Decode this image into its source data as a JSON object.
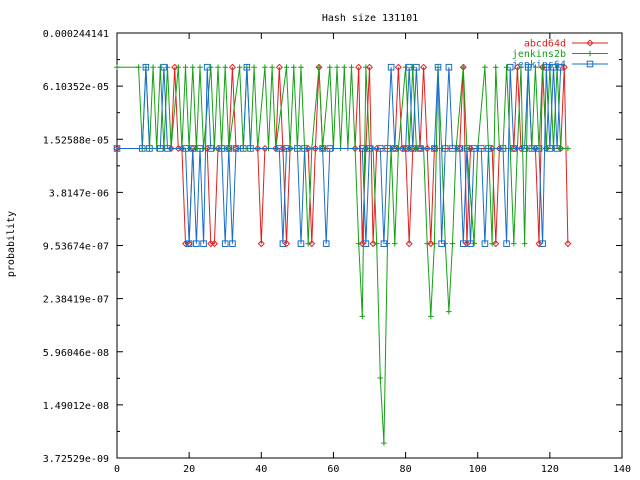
{
  "chart_data": {
    "type": "line",
    "title": "Hash size 131101",
    "xlabel": "",
    "ylabel": "probability",
    "xlim": [
      0,
      140
    ],
    "ylim": [
      3.72529e-09,
      0.000244141
    ],
    "yscale": "log4",
    "grid": false,
    "legend": "top-right",
    "x_ticks": [
      "0",
      "20",
      "40",
      "60",
      "80",
      "100",
      "120",
      "140"
    ],
    "y_ticks": [
      "0.000244141",
      "6.10352e-05",
      "1.52588e-05",
      "3.8147e-06",
      "9.53674e-07",
      "2.38419e-07",
      "5.96046e-08",
      "1.49012e-08",
      "3.72529e-09"
    ],
    "series": [
      {
        "name": "abcd64d",
        "color": "#e0201e",
        "marker": "diamond",
        "points": [
          [
            0,
            1.2e-05
          ],
          [
            15,
            1.2e-05
          ],
          [
            16,
            0.0001
          ],
          [
            17,
            1.2e-05
          ],
          [
            18,
            1.2e-05
          ],
          [
            19,
            1e-06
          ],
          [
            20,
            1e-06
          ],
          [
            21,
            1.2e-05
          ],
          [
            25,
            1.2e-05
          ],
          [
            26,
            1e-06
          ],
          [
            27,
            1e-06
          ],
          [
            28,
            1.2e-05
          ],
          [
            31,
            1.2e-05
          ],
          [
            32,
            0.0001
          ],
          [
            33,
            1.2e-05
          ],
          [
            39,
            1.2e-05
          ],
          [
            40,
            1e-06
          ],
          [
            41,
            1.2e-05
          ],
          [
            44,
            1.2e-05
          ],
          [
            45,
            0.0001
          ],
          [
            46,
            1.2e-05
          ],
          [
            47,
            1e-06
          ],
          [
            48,
            1.2e-05
          ],
          [
            53,
            1.2e-05
          ],
          [
            54,
            1e-06
          ],
          [
            55,
            1.2e-05
          ],
          [
            56,
            0.0001
          ],
          [
            57,
            1.2e-05
          ],
          [
            66,
            1.2e-05
          ],
          [
            67,
            0.0001
          ],
          [
            68,
            1e-06
          ],
          [
            69,
            1.2e-05
          ],
          [
            70,
            0.0001
          ],
          [
            71,
            1e-06
          ],
          [
            72,
            1.2e-05
          ],
          [
            77,
            1.2e-05
          ],
          [
            78,
            0.0001
          ],
          [
            79,
            1.2e-05
          ],
          [
            80,
            1.2e-05
          ],
          [
            81,
            1e-06
          ],
          [
            82,
            1.2e-05
          ],
          [
            84,
            1.2e-05
          ],
          [
            85,
            0.0001
          ],
          [
            86,
            1.2e-05
          ],
          [
            87,
            1e-06
          ],
          [
            88,
            1.2e-05
          ],
          [
            95,
            1.2e-05
          ],
          [
            96,
            0.0001
          ],
          [
            97,
            1e-06
          ],
          [
            98,
            1.2e-05
          ],
          [
            104,
            1.2e-05
          ],
          [
            105,
            1e-06
          ],
          [
            106,
            1.2e-05
          ],
          [
            110,
            1.2e-05
          ],
          [
            111,
            0.0001
          ],
          [
            112,
            1.2e-05
          ],
          [
            116,
            1.2e-05
          ],
          [
            117,
            1e-06
          ],
          [
            118,
            0.0001
          ],
          [
            119,
            1.2e-05
          ],
          [
            123,
            1.2e-05
          ],
          [
            124,
            0.0001
          ],
          [
            125,
            1e-06
          ]
        ]
      },
      {
        "name": "jenkins2b",
        "color": "#16a016",
        "marker": "plus",
        "points": [
          [
            0,
            0.0001
          ],
          [
            6,
            0.0001
          ],
          [
            7,
            1.2e-05
          ],
          [
            8,
            0.0001
          ],
          [
            9,
            1.2e-05
          ],
          [
            10,
            0.0001
          ],
          [
            11,
            1.2e-05
          ],
          [
            12,
            0.0001
          ],
          [
            13,
            1.2e-05
          ],
          [
            14,
            0.0001
          ],
          [
            15,
            1.2e-05
          ],
          [
            17,
            0.0001
          ],
          [
            18,
            1.2e-05
          ],
          [
            19,
            0.0001
          ],
          [
            20,
            1.2e-05
          ],
          [
            21,
            0.0001
          ],
          [
            22,
            1.2e-05
          ],
          [
            23,
            0.0001
          ],
          [
            24,
            1.2e-05
          ],
          [
            26,
            0.0001
          ],
          [
            27,
            1.2e-05
          ],
          [
            28,
            0.0001
          ],
          [
            29,
            1.2e-05
          ],
          [
            30,
            0.0001
          ],
          [
            31,
            1.2e-05
          ],
          [
            34,
            0.0001
          ],
          [
            35,
            1.2e-05
          ],
          [
            36,
            0.0001
          ],
          [
            37,
            1.2e-05
          ],
          [
            38,
            0.0001
          ],
          [
            39,
            1.2e-05
          ],
          [
            41,
            0.0001
          ],
          [
            42,
            1.2e-05
          ],
          [
            43,
            0.0001
          ],
          [
            44,
            1.2e-05
          ],
          [
            47,
            0.0001
          ],
          [
            48,
            1.2e-05
          ],
          [
            49,
            0.0001
          ],
          [
            50,
            1.2e-05
          ],
          [
            51,
            0.0001
          ],
          [
            52,
            1.2e-05
          ],
          [
            53,
            1e-06
          ],
          [
            54,
            1.2e-05
          ],
          [
            56,
            0.0001
          ],
          [
            57,
            1.2e-05
          ],
          [
            59,
            0.0001
          ],
          [
            60,
            1.2e-05
          ],
          [
            61,
            0.0001
          ],
          [
            62,
            1.2e-05
          ],
          [
            63,
            0.0001
          ],
          [
            64,
            1.2e-05
          ],
          [
            65,
            0.0001
          ],
          [
            66,
            1.2e-05
          ],
          [
            67,
            1e-06
          ],
          [
            68,
            1.5e-07
          ],
          [
            69,
            0.0001
          ],
          [
            70,
            1.2e-05
          ],
          [
            71,
            1.2e-05
          ],
          [
            72,
            1e-06
          ],
          [
            73,
            3e-08
          ],
          [
            74,
            5.5e-09
          ],
          [
            75,
            1e-06
          ],
          [
            76,
            1.2e-05
          ],
          [
            77,
            1e-06
          ],
          [
            78,
            1.2e-05
          ],
          [
            80,
            0.0001
          ],
          [
            81,
            1.2e-05
          ],
          [
            82,
            0.0001
          ],
          [
            83,
            1.2e-05
          ],
          [
            85,
            1.2e-05
          ],
          [
            86,
            1e-06
          ],
          [
            87,
            1.5e-07
          ],
          [
            88,
            1e-06
          ],
          [
            89,
            0.0001
          ],
          [
            90,
            1.2e-05
          ],
          [
            91,
            1e-06
          ],
          [
            92,
            1.7e-07
          ],
          [
            93,
            1e-06
          ],
          [
            94,
            1.2e-05
          ],
          [
            96,
            0.0001
          ],
          [
            97,
            1.2e-05
          ],
          [
            99,
            1e-06
          ],
          [
            100,
            1.2e-05
          ],
          [
            102,
            0.0001
          ],
          [
            103,
            1.2e-05
          ],
          [
            104,
            1e-06
          ],
          [
            105,
            0.0001
          ],
          [
            106,
            1.2e-05
          ],
          [
            107,
            1.2e-05
          ],
          [
            108,
            0.0001
          ],
          [
            109,
            1.2e-05
          ],
          [
            110,
            1e-06
          ],
          [
            111,
            1.2e-05
          ],
          [
            112,
            0.0001
          ],
          [
            113,
            1e-06
          ],
          [
            114,
            0.0001
          ],
          [
            115,
            1.2e-05
          ],
          [
            116,
            0.0001
          ],
          [
            117,
            1.2e-05
          ],
          [
            118,
            0.0001
          ],
          [
            119,
            1.2e-05
          ],
          [
            120,
            0.0001
          ],
          [
            121,
            1.2e-05
          ],
          [
            122,
            0.0001
          ],
          [
            123,
            1.2e-05
          ],
          [
            125,
            1.2e-05
          ]
        ]
      },
      {
        "name": "jenkins64",
        "color": "#1a6ec8",
        "marker": "square",
        "points": [
          [
            0,
            1.2e-05
          ],
          [
            7,
            1.2e-05
          ],
          [
            8,
            0.0001
          ],
          [
            9,
            1.2e-05
          ],
          [
            12,
            1.2e-05
          ],
          [
            13,
            0.0001
          ],
          [
            14,
            1.2e-05
          ],
          [
            19,
            1.2e-05
          ],
          [
            20,
            1e-06
          ],
          [
            21,
            1.2e-05
          ],
          [
            22,
            1e-06
          ],
          [
            23,
            1.2e-05
          ],
          [
            24,
            1e-06
          ],
          [
            25,
            0.0001
          ],
          [
            26,
            1.2e-05
          ],
          [
            29,
            1.2e-05
          ],
          [
            30,
            1e-06
          ],
          [
            31,
            1.2e-05
          ],
          [
            32,
            1e-06
          ],
          [
            33,
            1.2e-05
          ],
          [
            35,
            1.2e-05
          ],
          [
            36,
            0.0001
          ],
          [
            37,
            1.2e-05
          ],
          [
            45,
            1.2e-05
          ],
          [
            46,
            1e-06
          ],
          [
            47,
            1.2e-05
          ],
          [
            50,
            1.2e-05
          ],
          [
            51,
            1e-06
          ],
          [
            52,
            1.2e-05
          ],
          [
            57,
            1.2e-05
          ],
          [
            58,
            1e-06
          ],
          [
            59,
            1.2e-05
          ],
          [
            68,
            1.2e-05
          ],
          [
            69,
            1e-06
          ],
          [
            70,
            1.2e-05
          ],
          [
            73,
            1.2e-05
          ],
          [
            74,
            1e-06
          ],
          [
            75,
            1.2e-05
          ],
          [
            76,
            0.0001
          ],
          [
            77,
            1.2e-05
          ],
          [
            80,
            1.2e-05
          ],
          [
            81,
            0.0001
          ],
          [
            82,
            1.2e-05
          ],
          [
            83,
            0.0001
          ],
          [
            84,
            1.2e-05
          ],
          [
            88,
            1.2e-05
          ],
          [
            89,
            0.0001
          ],
          [
            90,
            1e-06
          ],
          [
            91,
            1.2e-05
          ],
          [
            92,
            0.0001
          ],
          [
            93,
            1.2e-05
          ],
          [
            95,
            1.2e-05
          ],
          [
            96,
            1e-06
          ],
          [
            97,
            1.2e-05
          ],
          [
            98,
            1e-06
          ],
          [
            99,
            1.2e-05
          ],
          [
            101,
            1.2e-05
          ],
          [
            102,
            1e-06
          ],
          [
            103,
            1.2e-05
          ],
          [
            107,
            1.2e-05
          ],
          [
            108,
            1e-06
          ],
          [
            109,
            0.0001
          ],
          [
            110,
            1.2e-05
          ],
          [
            113,
            1.2e-05
          ],
          [
            114,
            0.0001
          ],
          [
            115,
            1.2e-05
          ],
          [
            117,
            1.2e-05
          ],
          [
            118,
            1e-06
          ],
          [
            119,
            0.0001
          ],
          [
            120,
            1.2e-05
          ],
          [
            121,
            0.0001
          ],
          [
            122,
            1.2e-05
          ],
          [
            123,
            0.0001
          ]
        ]
      }
    ]
  }
}
